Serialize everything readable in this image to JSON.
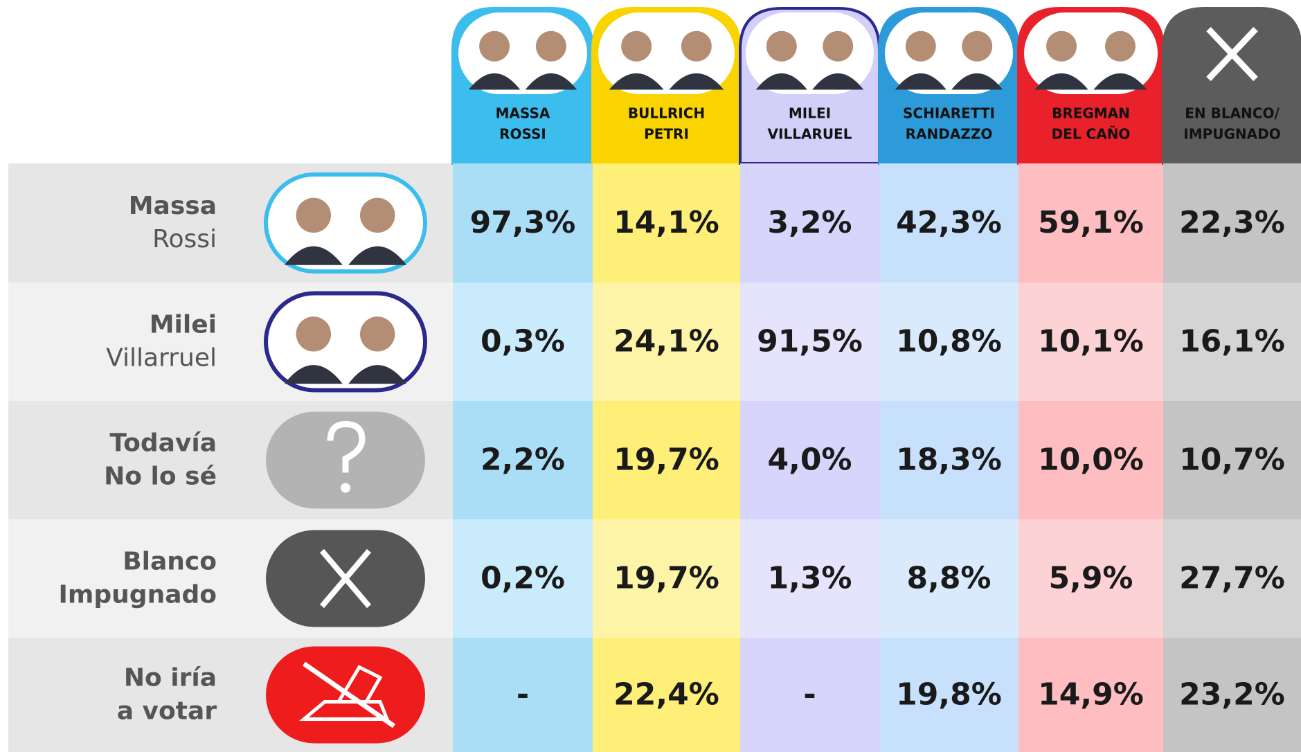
{
  "header": {
    "columns": [
      {
        "lines": [
          "MASSA",
          "ROSSI"
        ]
      },
      {
        "lines": [
          "BULLRICH",
          "PETRI"
        ]
      },
      {
        "lines": [
          "MILEI",
          "VILLARUEL"
        ]
      },
      {
        "lines": [
          "SCHIARETTI",
          "RANDAZZO"
        ]
      },
      {
        "lines": [
          "BREGMAN",
          "DEL CAÑO"
        ]
      },
      {
        "lines": [
          "EN BLANCO/",
          "IMPUGNADO"
        ]
      }
    ]
  },
  "table": {
    "rows": [
      {
        "label": [
          "Massa",
          "Rossi"
        ],
        "cells": [
          "97,3%",
          "14,1%",
          "3,2%",
          "42,3%",
          "59,1%",
          "22,3%"
        ]
      },
      {
        "label": [
          "Milei",
          "Villarruel"
        ],
        "cells": [
          "0,3%",
          "24,1%",
          "91,5%",
          "10,8%",
          "10,1%",
          "16,1%"
        ]
      },
      {
        "label": [
          "Todavía",
          "No lo sé"
        ],
        "cells": [
          "2,2%",
          "19,7%",
          "4,0%",
          "18,3%",
          "10,0%",
          "10,7%"
        ]
      },
      {
        "label": [
          "Blanco",
          "Impugnado"
        ],
        "cells": [
          "0,2%",
          "19,7%",
          "1,3%",
          "8,8%",
          "5,9%",
          "27,7%"
        ]
      },
      {
        "label": [
          "No iría",
          "a votar"
        ],
        "cells": [
          "-",
          "22,4%",
          "-",
          "19,8%",
          "14,9%",
          "23,2%"
        ]
      }
    ]
  }
}
